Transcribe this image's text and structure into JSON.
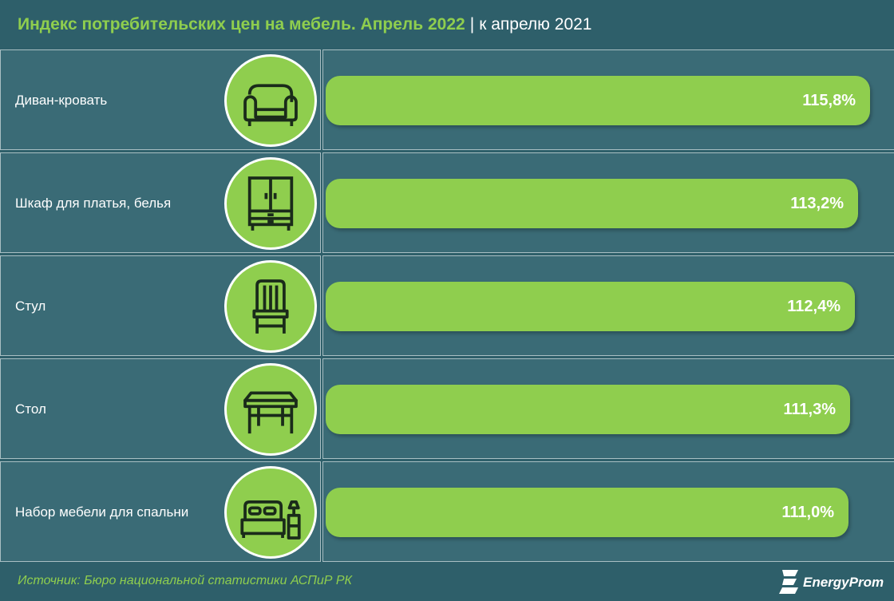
{
  "title": {
    "main": "Индекс потребительских цен на мебель. Апрель 2022",
    "separator": "|",
    "sub": "к апрелю 2021"
  },
  "chart_data": {
    "type": "bar",
    "orientation": "horizontal",
    "categories": [
      "Диван-кровать",
      "Шкаф для платья, белья",
      "Стул",
      "Стол",
      "Набор мебели для спальни"
    ],
    "values": [
      115.8,
      113.2,
      112.4,
      111.3,
      111.0
    ],
    "value_labels": [
      "115,8%",
      "113,2%",
      "112,4%",
      "111,3%",
      "111,0%"
    ],
    "icons": [
      "sofa-icon",
      "wardrobe-icon",
      "chair-icon",
      "table-icon",
      "bedroom-set-icon"
    ],
    "bar_color": "#8fce4e",
    "grid": false
  },
  "source": "Источник: Бюро национальной статистики АСПиР РК",
  "logo": {
    "text": "EnergyProm",
    "icon": "energyprom-logo-icon"
  },
  "colors": {
    "background": "#2e5f6a",
    "accent": "#8fce4e",
    "text": "#ffffff"
  }
}
